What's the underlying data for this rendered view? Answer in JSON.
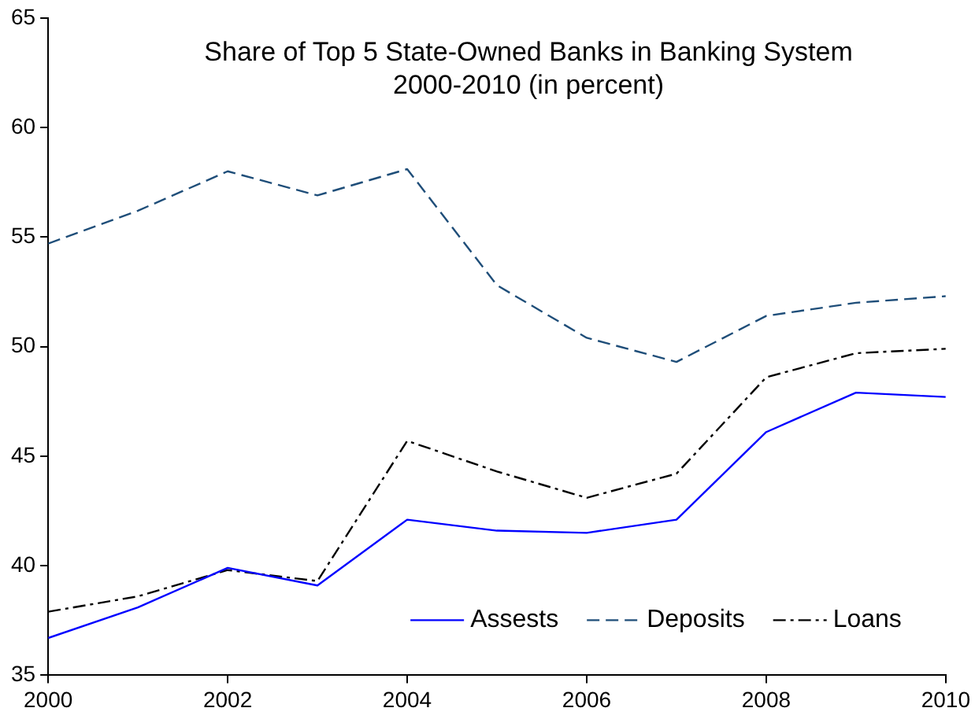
{
  "chart_data": {
    "type": "line",
    "title": "Share of Top 5 State-Owned Banks in Banking System\n2000-2010 (in percent)",
    "x": [
      2000,
      2001,
      2002,
      2003,
      2004,
      2005,
      2006,
      2007,
      2008,
      2009,
      2010
    ],
    "series": [
      {
        "name": "Assests",
        "color": "#0000ff",
        "line_style": "solid",
        "values": [
          36.7,
          38.1,
          39.9,
          39.1,
          42.1,
          41.6,
          41.5,
          42.1,
          46.1,
          47.9,
          47.7
        ]
      },
      {
        "name": "Deposits",
        "color": "#1f4e79",
        "line_style": "dashed",
        "values": [
          54.7,
          56.2,
          58.0,
          56.9,
          58.1,
          52.8,
          50.4,
          49.3,
          51.4,
          52.0,
          52.3
        ]
      },
      {
        "name": "Loans",
        "color": "#000000",
        "line_style": "dashdot",
        "values": [
          37.9,
          38.6,
          39.8,
          39.3,
          45.7,
          44.3,
          43.1,
          44.2,
          48.6,
          49.7,
          49.9
        ]
      }
    ],
    "xlim": [
      2000,
      2010
    ],
    "xticks": [
      2000,
      2002,
      2004,
      2006,
      2008,
      2010
    ],
    "ylim": [
      35,
      65
    ],
    "yticks": [
      35,
      40,
      45,
      50,
      55,
      60,
      65
    ],
    "grid": false,
    "legend": "bottom right",
    "marker": "none"
  }
}
